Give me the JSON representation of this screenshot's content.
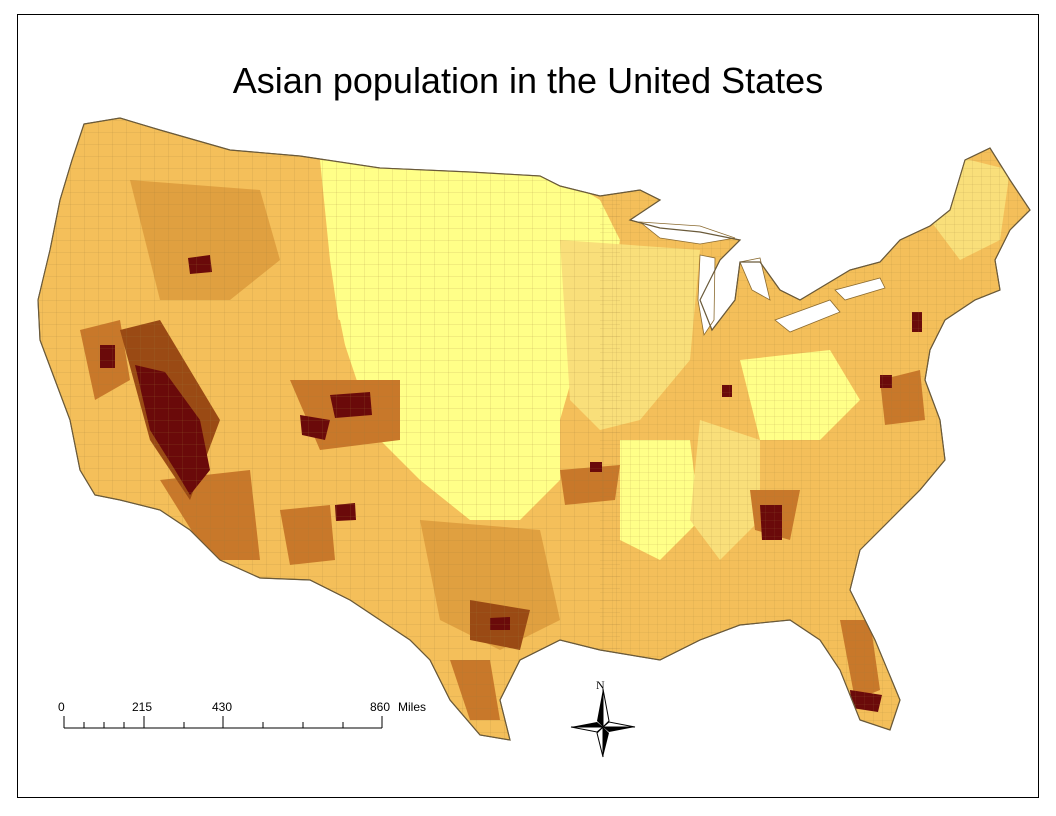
{
  "map": {
    "title": "Asian population in the United States",
    "palette": {
      "class1": "#ffff88",
      "class2": "#f9df7a",
      "class3": "#f4bf5a",
      "class4": "#e0a040",
      "class5": "#c8782a",
      "class6": "#9a4a14",
      "class7": "#6a0a0a",
      "border": "#8a6a30",
      "water": "#ffffff"
    },
    "scale_bar": {
      "ticks": [
        "0",
        "215",
        "430",
        "860"
      ],
      "unit": "Miles"
    },
    "north_arrow": {
      "label": "N"
    }
  }
}
